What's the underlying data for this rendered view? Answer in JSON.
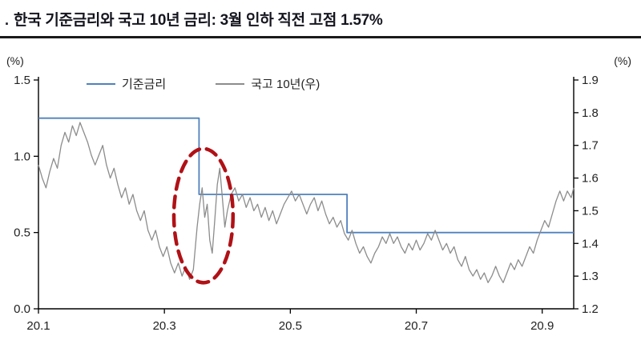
{
  "title": {
    "prefix": ".",
    "text": "한국 기준금리와 국고 10년 금리: 3월 인하 직전 고점 1.57%"
  },
  "axes": {
    "left_unit": "(%)",
    "right_unit": "(%)",
    "left_ticks": [
      "0.0",
      "0.5",
      "1.0",
      "1.5"
    ],
    "left_tick_values": [
      0.0,
      0.5,
      1.0,
      1.5
    ],
    "right_ticks": [
      "1.2",
      "1.3",
      "1.4",
      "1.5",
      "1.6",
      "1.7",
      "1.8",
      "1.9"
    ],
    "right_tick_values": [
      1.2,
      1.3,
      1.4,
      1.5,
      1.6,
      1.7,
      1.8,
      1.9
    ],
    "x_ticks": [
      "20.1",
      "20.3",
      "20.5",
      "20.7",
      "20.9"
    ],
    "x_tick_values": [
      20.1,
      20.3,
      20.5,
      20.7,
      20.9
    ]
  },
  "legend": [
    {
      "label": "기준금리",
      "color": "#4f81bd"
    },
    {
      "label": "국고 10년(우)",
      "color": "#8c8c8c"
    }
  ],
  "chart_data": {
    "type": "line",
    "title": "한국 기준금리와 국고 10년 금리: 3월 인하 직전 고점 1.57%",
    "x_axis": {
      "range": [
        20.1,
        20.95
      ],
      "ticks": [
        20.1,
        20.3,
        20.5,
        20.7,
        20.9
      ]
    },
    "left_axis": {
      "range": [
        0.0,
        1.5
      ],
      "ticks": [
        0.0,
        0.5,
        1.0,
        1.5
      ],
      "unit": "(%)"
    },
    "right_axis": {
      "range": [
        1.2,
        1.9
      ],
      "ticks": [
        1.2,
        1.3,
        1.4,
        1.5,
        1.6,
        1.7,
        1.8,
        1.9
      ],
      "unit": "(%)"
    },
    "grid": false,
    "legend_position": "top-inside",
    "series": [
      {
        "name": "기준금리",
        "axis": "left",
        "color": "#4f81bd",
        "width": 1.8,
        "points": [
          [
            20.1,
            1.25
          ],
          [
            20.355,
            1.25
          ],
          [
            20.355,
            0.75
          ],
          [
            20.59,
            0.75
          ],
          [
            20.59,
            0.5
          ],
          [
            20.95,
            0.5
          ]
        ]
      },
      {
        "name": "국고 10년(우)",
        "axis": "right",
        "color": "#8c8c8c",
        "width": 1.3,
        "points": [
          [
            20.1,
            1.64
          ],
          [
            20.106,
            1.6
          ],
          [
            20.112,
            1.57
          ],
          [
            20.118,
            1.62
          ],
          [
            20.124,
            1.66
          ],
          [
            20.13,
            1.63
          ],
          [
            20.136,
            1.7
          ],
          [
            20.142,
            1.74
          ],
          [
            20.148,
            1.71
          ],
          [
            20.154,
            1.76
          ],
          [
            20.16,
            1.73
          ],
          [
            20.166,
            1.77
          ],
          [
            20.172,
            1.74
          ],
          [
            20.178,
            1.71
          ],
          [
            20.184,
            1.67
          ],
          [
            20.19,
            1.64
          ],
          [
            20.196,
            1.67
          ],
          [
            20.202,
            1.7
          ],
          [
            20.208,
            1.64
          ],
          [
            20.214,
            1.6
          ],
          [
            20.22,
            1.63
          ],
          [
            20.226,
            1.58
          ],
          [
            20.232,
            1.54
          ],
          [
            20.238,
            1.57
          ],
          [
            20.244,
            1.52
          ],
          [
            20.25,
            1.55
          ],
          [
            20.256,
            1.5
          ],
          [
            20.262,
            1.47
          ],
          [
            20.268,
            1.5
          ],
          [
            20.274,
            1.44
          ],
          [
            20.28,
            1.41
          ],
          [
            20.286,
            1.44
          ],
          [
            20.292,
            1.39
          ],
          [
            20.298,
            1.36
          ],
          [
            20.304,
            1.39
          ],
          [
            20.31,
            1.34
          ],
          [
            20.316,
            1.31
          ],
          [
            20.322,
            1.34
          ],
          [
            20.328,
            1.3
          ],
          [
            20.334,
            1.33
          ],
          [
            20.34,
            1.29
          ],
          [
            20.346,
            1.32
          ],
          [
            20.352,
            1.45
          ],
          [
            20.356,
            1.52
          ],
          [
            20.36,
            1.57
          ],
          [
            20.364,
            1.48
          ],
          [
            20.368,
            1.52
          ],
          [
            20.372,
            1.41
          ],
          [
            20.376,
            1.37
          ],
          [
            20.38,
            1.47
          ],
          [
            20.384,
            1.58
          ],
          [
            20.388,
            1.63
          ],
          [
            20.392,
            1.54
          ],
          [
            20.396,
            1.45
          ],
          [
            20.4,
            1.5
          ],
          [
            20.406,
            1.55
          ],
          [
            20.412,
            1.57
          ],
          [
            20.418,
            1.53
          ],
          [
            20.424,
            1.55
          ],
          [
            20.43,
            1.51
          ],
          [
            20.436,
            1.54
          ],
          [
            20.442,
            1.5
          ],
          [
            20.448,
            1.52
          ],
          [
            20.454,
            1.48
          ],
          [
            20.46,
            1.51
          ],
          [
            20.466,
            1.47
          ],
          [
            20.472,
            1.5
          ],
          [
            20.478,
            1.46
          ],
          [
            20.484,
            1.49
          ],
          [
            20.49,
            1.52
          ],
          [
            20.496,
            1.54
          ],
          [
            20.502,
            1.56
          ],
          [
            20.508,
            1.53
          ],
          [
            20.514,
            1.55
          ],
          [
            20.52,
            1.52
          ],
          [
            20.526,
            1.49
          ],
          [
            20.532,
            1.52
          ],
          [
            20.538,
            1.54
          ],
          [
            20.544,
            1.5
          ],
          [
            20.55,
            1.53
          ],
          [
            20.556,
            1.49
          ],
          [
            20.562,
            1.46
          ],
          [
            20.568,
            1.48
          ],
          [
            20.574,
            1.45
          ],
          [
            20.58,
            1.47
          ],
          [
            20.586,
            1.43
          ],
          [
            20.592,
            1.41
          ],
          [
            20.598,
            1.44
          ],
          [
            20.604,
            1.4
          ],
          [
            20.61,
            1.37
          ],
          [
            20.616,
            1.39
          ],
          [
            20.622,
            1.36
          ],
          [
            20.628,
            1.34
          ],
          [
            20.634,
            1.37
          ],
          [
            20.64,
            1.39
          ],
          [
            20.646,
            1.42
          ],
          [
            20.652,
            1.4
          ],
          [
            20.658,
            1.43
          ],
          [
            20.664,
            1.4
          ],
          [
            20.67,
            1.42
          ],
          [
            20.676,
            1.39
          ],
          [
            20.682,
            1.37
          ],
          [
            20.688,
            1.4
          ],
          [
            20.694,
            1.38
          ],
          [
            20.7,
            1.41
          ],
          [
            20.706,
            1.38
          ],
          [
            20.712,
            1.4
          ],
          [
            20.718,
            1.43
          ],
          [
            20.724,
            1.41
          ],
          [
            20.73,
            1.44
          ],
          [
            20.736,
            1.41
          ],
          [
            20.742,
            1.38
          ],
          [
            20.748,
            1.4
          ],
          [
            20.754,
            1.37
          ],
          [
            20.76,
            1.39
          ],
          [
            20.766,
            1.35
          ],
          [
            20.772,
            1.33
          ],
          [
            20.778,
            1.36
          ],
          [
            20.784,
            1.32
          ],
          [
            20.79,
            1.3
          ],
          [
            20.796,
            1.32
          ],
          [
            20.802,
            1.29
          ],
          [
            20.808,
            1.31
          ],
          [
            20.814,
            1.28
          ],
          [
            20.82,
            1.3
          ],
          [
            20.826,
            1.33
          ],
          [
            20.832,
            1.3
          ],
          [
            20.838,
            1.28
          ],
          [
            20.844,
            1.31
          ],
          [
            20.85,
            1.34
          ],
          [
            20.856,
            1.32
          ],
          [
            20.862,
            1.35
          ],
          [
            20.868,
            1.33
          ],
          [
            20.874,
            1.36
          ],
          [
            20.88,
            1.39
          ],
          [
            20.886,
            1.37
          ],
          [
            20.892,
            1.41
          ],
          [
            20.898,
            1.44
          ],
          [
            20.904,
            1.47
          ],
          [
            20.91,
            1.45
          ],
          [
            20.916,
            1.49
          ],
          [
            20.922,
            1.53
          ],
          [
            20.928,
            1.56
          ],
          [
            20.934,
            1.53
          ],
          [
            20.94,
            1.56
          ],
          [
            20.946,
            1.54
          ],
          [
            20.95,
            1.57
          ]
        ]
      }
    ],
    "annotation": {
      "type": "dashed-ellipse",
      "color": "#b01116",
      "axis": "right",
      "cx": 20.362,
      "cy": 1.485,
      "rx_x_units": 0.047,
      "ry_value_units": 0.205,
      "label": "3월 인하 직전 고점 1.57%"
    }
  }
}
